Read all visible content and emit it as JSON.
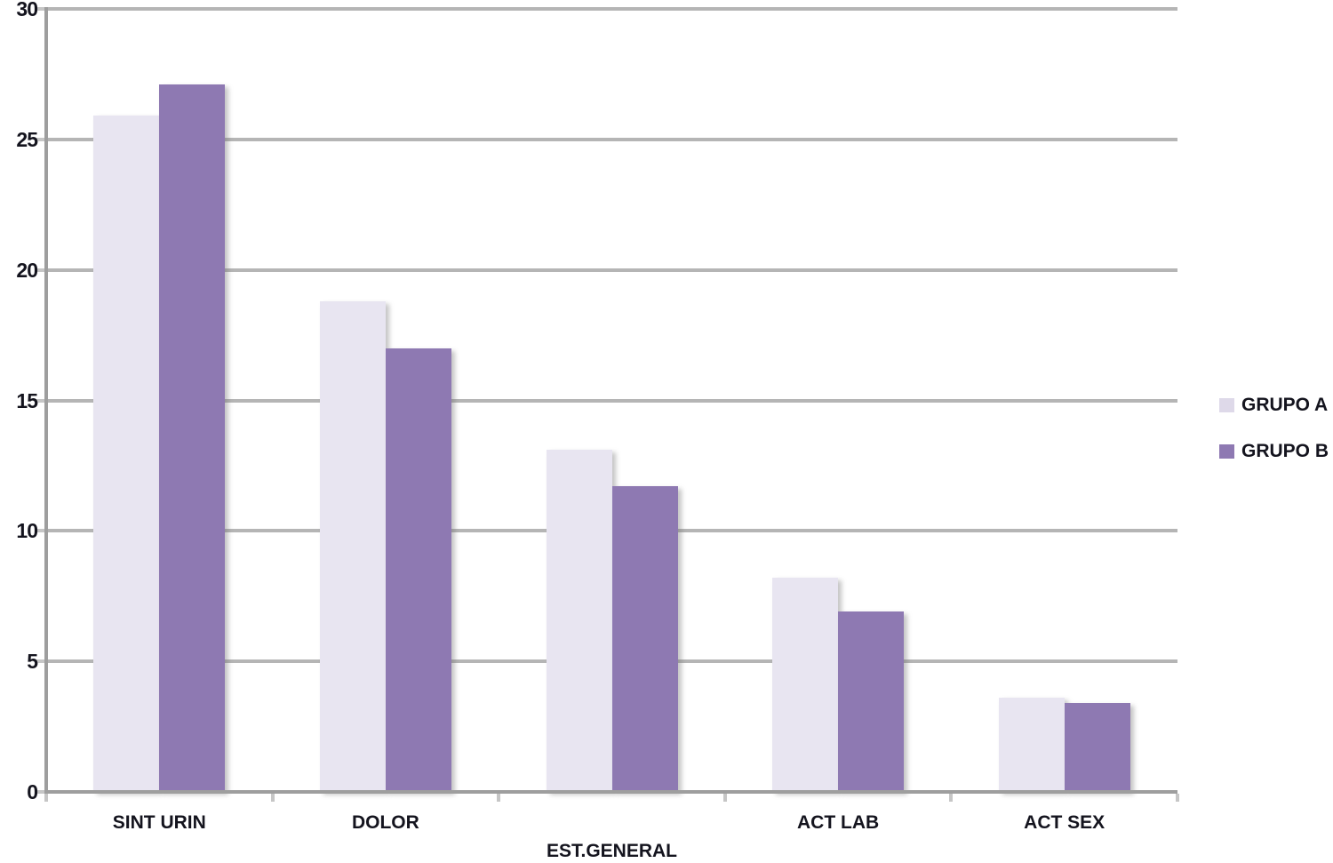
{
  "chart_data": {
    "type": "bar",
    "title": "",
    "xlabel": "",
    "ylabel": "",
    "categories": [
      "SINT URIN",
      "DOLOR",
      "EST.GENERAL",
      "ACT LAB",
      "ACT SEX"
    ],
    "series": [
      {
        "name": "GRUPO A",
        "color": "#e8e5f1",
        "values": [
          25.9,
          18.8,
          13.1,
          8.2,
          3.6
        ]
      },
      {
        "name": "GRUPO B",
        "color": "#8e79b2",
        "values": [
          27.1,
          17.0,
          11.7,
          6.9,
          3.4
        ]
      }
    ],
    "ylim": [
      0,
      30
    ],
    "yticks": [
      0,
      5,
      10,
      15,
      20,
      25,
      30
    ],
    "grid": true,
    "gridline_color": "#b5b5b5",
    "axis_color": "#9e9e9e",
    "tick_color": "#c6c6c6",
    "text_color": "#14141e",
    "background_color": "#ffffff",
    "legend_position": "right"
  },
  "legend": {
    "items": [
      {
        "label": "GRUPO A",
        "color": "#ded9e9"
      },
      {
        "label": "GRUPO B",
        "color": "#8e79b2"
      }
    ]
  }
}
